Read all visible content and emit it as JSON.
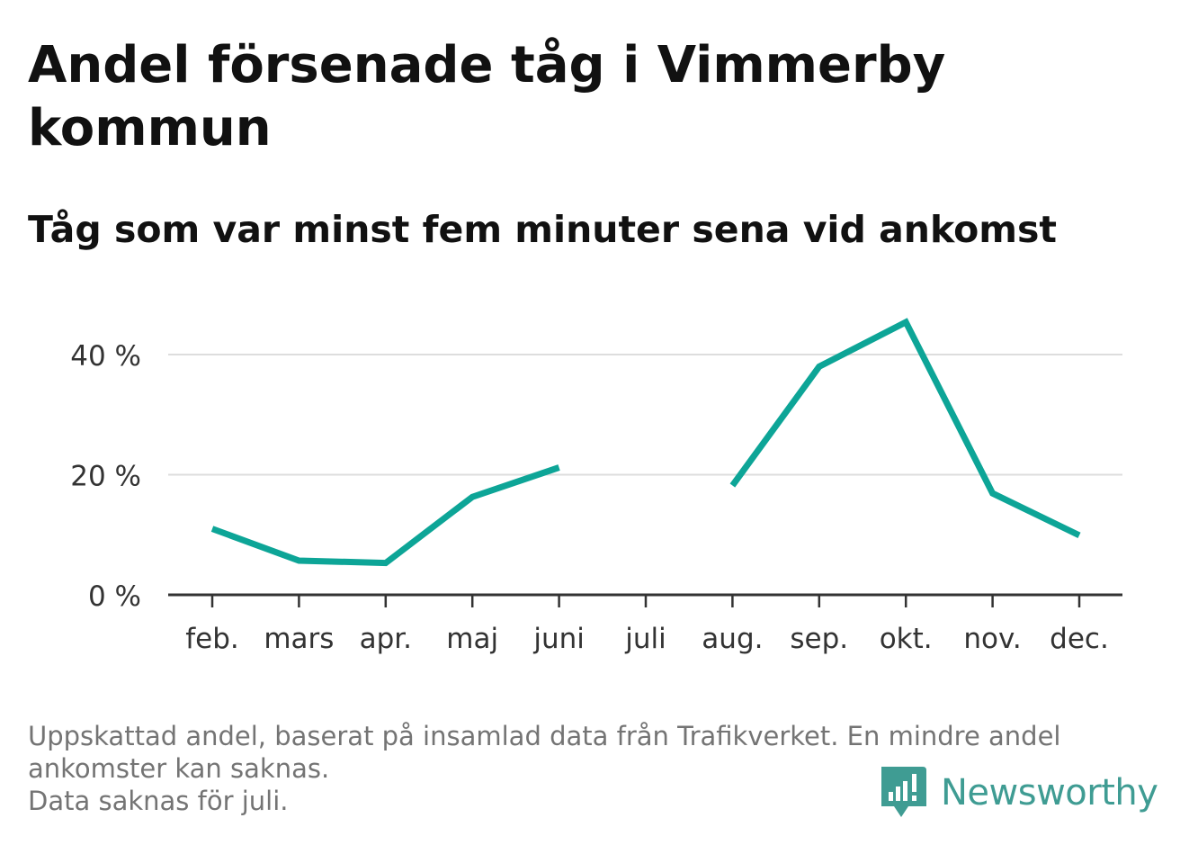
{
  "colors": {
    "line": "#0da597",
    "grid": "#dddddd",
    "axis": "#333333",
    "tick_text": "#333333",
    "footnote": "#747474",
    "brand": "#3f9c93"
  },
  "brand": {
    "name": "Newsworthy",
    "icon": "newsworthy-logo-icon"
  },
  "footnote": {
    "line1": "Uppskattad andel, baserat på insamlad data från Trafikverket. En mindre andel",
    "line2": "ankomster kan saknas.",
    "line3": "Data saknas för juli."
  },
  "chart_data": {
    "type": "line",
    "title": "Andel försenade tåg i Vimmerby kommun",
    "subtitle": "Tåg som var minst fem minuter sena vid ankomst",
    "xlabel": "",
    "ylabel": "",
    "categories": [
      "feb.",
      "mars",
      "apr.",
      "maj",
      "juni",
      "juli",
      "aug.",
      "sep.",
      "okt.",
      "nov.",
      "dec."
    ],
    "series": [
      {
        "name": "Andel försenade tåg",
        "values": [
          11,
          5.7,
          5.3,
          16.3,
          21.2,
          null,
          18.2,
          38,
          45.4,
          16.9,
          9.9
        ]
      }
    ],
    "yticks": [
      0,
      20,
      40
    ],
    "ytick_labels": [
      "0 %",
      "20 %",
      "40 %"
    ],
    "ylim": [
      0,
      50
    ],
    "grid": true,
    "legend": "none"
  }
}
